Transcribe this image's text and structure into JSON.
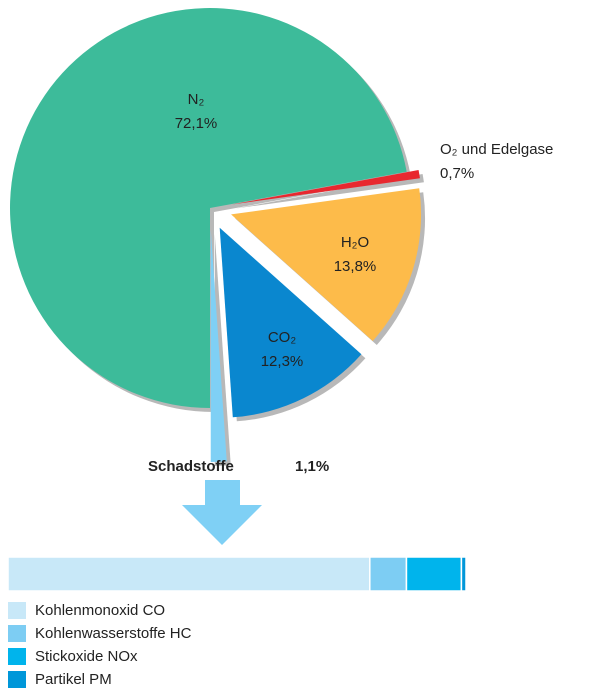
{
  "chart_data": [
    {
      "type": "pie",
      "categories": [
        "N₂",
        "O₂ und Edelgase",
        "H₂O",
        "CO₂",
        "Schadstoffe"
      ],
      "values": [
        72.1,
        0.7,
        13.8,
        12.3,
        1.1
      ],
      "value_labels": [
        "72,1%",
        "0,7%",
        "13,8%",
        "12,3%",
        "1,1%"
      ],
      "colors": [
        "#3dbb9a",
        "#e8282f",
        "#fdbb4a",
        "#0a87cf",
        "#7fd0f5"
      ]
    },
    {
      "type": "bar",
      "orientation": "horizontal",
      "stacked": true,
      "xlim": [
        0,
        100
      ],
      "series": [
        {
          "name": "Kohlenmonoxid CO",
          "color": "#c8e8f8",
          "values": [
            79
          ]
        },
        {
          "name": "Kohlenwasserstoffe HC",
          "color": "#7dcdf3",
          "values": [
            8
          ]
        },
        {
          "name": "Stickoxide NOx",
          "color": "#00b4ec",
          "values": [
            12
          ]
        },
        {
          "name": "Partikel PM",
          "color": "#0097d9",
          "values": [
            1
          ]
        }
      ]
    }
  ]
}
